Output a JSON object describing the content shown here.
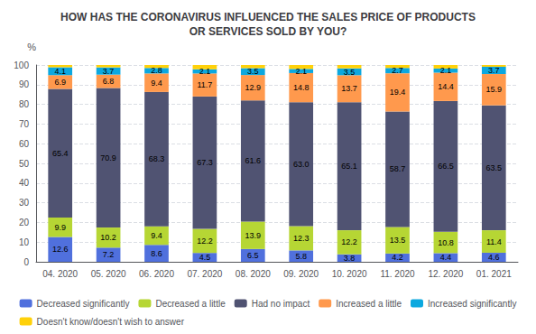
{
  "chart_data": {
    "type": "bar",
    "stacked": true,
    "title": "HOW HAS THE CORONAVIRUS INFLUENCED THE SALES PRICE OF PRODUCTS\nOR SERVICES SOLD BY YOU?",
    "ylabel": "%",
    "categories": [
      "04. 2020",
      "05. 2020",
      "06. 2020",
      "07. 2020",
      "08. 2020",
      "09. 2020",
      "10. 2020",
      "11. 2020",
      "12. 2020",
      "01. 2021"
    ],
    "series": [
      {
        "name": "Decreased significantly",
        "values": [
          12.6,
          7.2,
          8.6,
          4.5,
          6.5,
          5.8,
          3.8,
          4.2,
          4.4,
          4.6
        ],
        "data_labels": true
      },
      {
        "name": "Decreased a little",
        "values": [
          9.9,
          10.2,
          9.4,
          12.2,
          13.9,
          12.3,
          12.2,
          13.5,
          10.8,
          11.4
        ],
        "data_labels": true
      },
      {
        "name": "Had no impact",
        "values": [
          65.4,
          70.9,
          68.3,
          67.3,
          61.6,
          63.0,
          65.1,
          58.7,
          66.5,
          63.5
        ],
        "value_labels": [
          "65.4",
          "70.9",
          "68.3",
          "67.3",
          "61.6",
          "63.0",
          "65.1",
          "58.7",
          "66.5",
          "63.5"
        ],
        "data_labels": true
      },
      {
        "name": "Increased a little",
        "values": [
          6.9,
          6.8,
          9.4,
          11.7,
          12.9,
          14.8,
          13.7,
          19.4,
          14.4,
          15.9
        ],
        "data_labels": true
      },
      {
        "name": "Increased significantly",
        "values": [
          4.1,
          3.7,
          2.8,
          2.1,
          3.5,
          2.1,
          3.5,
          2.7,
          2.1,
          3.7
        ],
        "data_labels": true
      },
      {
        "name": "Doesn't know/doesn't wish to answer",
        "values": [
          1.1,
          1.2,
          1.5,
          2.2,
          1.6,
          2.0,
          1.7,
          1.5,
          1.8,
          0.9
        ],
        "data_labels": false
      }
    ],
    "ylim": [
      0,
      100
    ],
    "yticks": [
      0,
      10,
      20,
      30,
      40,
      50,
      60,
      70,
      80,
      90,
      100
    ],
    "grid": true,
    "legend": "bottom"
  }
}
